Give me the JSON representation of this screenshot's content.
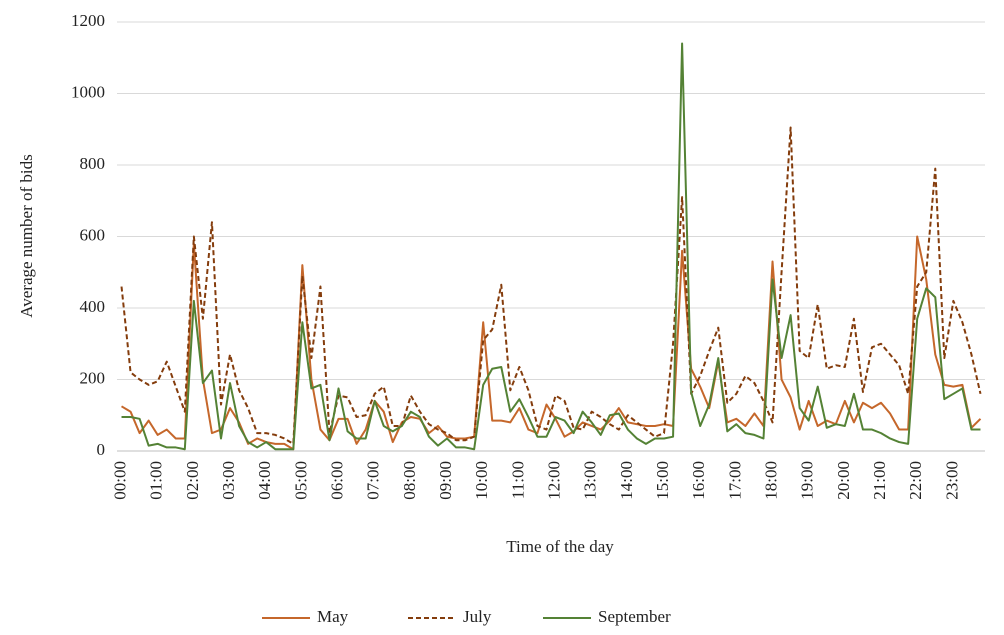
{
  "chart_data": {
    "type": "line",
    "xlabel": "Time of the day",
    "ylabel": "Average number of bids",
    "categories": [
      "00:00",
      null,
      null,
      null,
      "01:00",
      null,
      null,
      null,
      "02:00",
      null,
      null,
      null,
      "03:00",
      null,
      null,
      null,
      "04:00",
      null,
      null,
      null,
      "05:00",
      null,
      null,
      null,
      "06:00",
      null,
      null,
      null,
      "07:00",
      null,
      null,
      null,
      "08:00",
      null,
      null,
      null,
      "09:00",
      null,
      null,
      null,
      "10:00",
      null,
      null,
      null,
      "11:00",
      null,
      null,
      null,
      "12:00",
      null,
      null,
      null,
      "13:00",
      null,
      null,
      null,
      "14:00",
      null,
      null,
      null,
      "15:00",
      null,
      null,
      null,
      "16:00",
      null,
      null,
      null,
      "17:00",
      null,
      null,
      null,
      "18:00",
      null,
      null,
      null,
      "19:00",
      null,
      null,
      null,
      "20:00",
      null,
      null,
      null,
      "21:00",
      null,
      null,
      null,
      "22:00",
      null,
      null,
      null,
      "23:00",
      null,
      null,
      null
    ],
    "series": [
      {
        "name": "May",
        "color": "#c5672b",
        "style": "solid",
        "values": [
          125,
          110,
          50,
          85,
          45,
          60,
          35,
          35,
          580,
          200,
          50,
          60,
          120,
          80,
          20,
          35,
          25,
          20,
          20,
          5,
          520,
          200,
          60,
          30,
          90,
          90,
          20,
          60,
          140,
          110,
          25,
          80,
          95,
          90,
          50,
          70,
          40,
          35,
          35,
          40,
          360,
          85,
          85,
          80,
          120,
          60,
          50,
          130,
          90,
          40,
          55,
          80,
          70,
          60,
          85,
          120,
          80,
          75,
          70,
          70,
          75,
          70,
          560,
          230,
          180,
          120,
          250,
          80,
          90,
          70,
          105,
          70,
          530,
          200,
          150,
          60,
          140,
          70,
          85,
          75,
          140,
          80,
          135,
          120,
          135,
          105,
          60,
          60,
          600,
          480,
          270,
          185,
          180,
          185,
          65,
          90
        ]
      },
      {
        "name": "July",
        "color": "#843c0c",
        "style": "dashed",
        "values": [
          460,
          220,
          200,
          185,
          195,
          250,
          180,
          110,
          600,
          370,
          640,
          130,
          270,
          170,
          120,
          50,
          50,
          45,
          35,
          20,
          490,
          260,
          460,
          50,
          155,
          150,
          95,
          100,
          160,
          180,
          70,
          70,
          155,
          110,
          75,
          60,
          50,
          30,
          30,
          40,
          310,
          340,
          465,
          170,
          235,
          170,
          70,
          60,
          155,
          140,
          65,
          60,
          110,
          95,
          75,
          60,
          100,
          80,
          60,
          40,
          50,
          300,
          710,
          160,
          210,
          280,
          345,
          135,
          160,
          210,
          190,
          140,
          80,
          500,
          905,
          280,
          260,
          410,
          230,
          240,
          235,
          370,
          165,
          290,
          300,
          270,
          240,
          160,
          460,
          500,
          790,
          260,
          420,
          360,
          270,
          160
        ]
      },
      {
        "name": "September",
        "color": "#548235",
        "style": "solid",
        "values": [
          95,
          95,
          90,
          15,
          20,
          10,
          10,
          5,
          420,
          190,
          225,
          35,
          190,
          70,
          25,
          10,
          25,
          5,
          5,
          5,
          360,
          175,
          185,
          30,
          175,
          55,
          35,
          35,
          140,
          70,
          55,
          70,
          110,
          95,
          40,
          15,
          35,
          10,
          10,
          5,
          185,
          230,
          235,
          110,
          145,
          95,
          40,
          40,
          95,
          85,
          50,
          110,
          80,
          45,
          100,
          105,
          60,
          35,
          20,
          35,
          35,
          40,
          1140,
          165,
          70,
          130,
          260,
          55,
          75,
          50,
          45,
          35,
          480,
          260,
          380,
          120,
          85,
          180,
          65,
          75,
          70,
          160,
          60,
          60,
          50,
          35,
          25,
          20,
          370,
          455,
          430,
          145,
          160,
          175,
          60,
          60
        ]
      }
    ],
    "ylim": [
      0,
      1200
    ],
    "yticks": [
      0,
      200,
      400,
      600,
      800,
      1000,
      1200
    ],
    "grid": true,
    "legend": "bottom"
  }
}
